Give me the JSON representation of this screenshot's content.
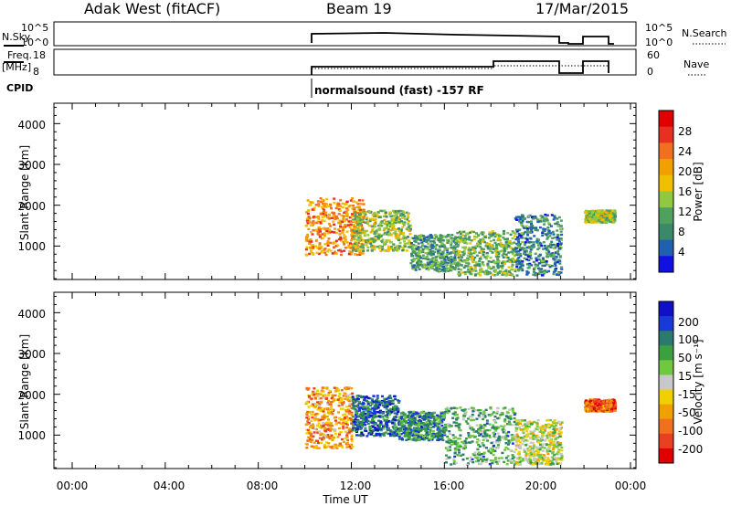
{
  "header": {
    "station": "Adak West (fitACF)",
    "beam": "Beam 19",
    "date": "17/Mar/2015"
  },
  "params": {
    "nsky_label": "N.Sky",
    "nsky_ticks": [
      "10^5",
      "10^0"
    ],
    "nsearch_label": "N.Search",
    "nsearch_ticks": [
      "10^5",
      "10^0"
    ],
    "freq_label_1": "Freq.",
    "freq_label_2": "[MHz]",
    "freq_ticks": [
      "18",
      "8"
    ],
    "nave_label": "Nave",
    "nave_ticks": [
      "60",
      "0"
    ],
    "cpid_label": "CPID",
    "cpid_text": "normalsound (fast) -157 RF"
  },
  "axes": {
    "x_ticks": [
      "00:00",
      "04:00",
      "08:00",
      "12:00",
      "16:00",
      "20:00",
      "00:00"
    ],
    "x_label": "Time UT",
    "y_ticks": [
      "4000",
      "3000",
      "2000",
      "1000"
    ],
    "y_label": "Slant Range [km]"
  },
  "colorbars": {
    "power": {
      "label": "Power [dB]",
      "ticks": [
        "28",
        "24",
        "20",
        "16",
        "12",
        "8",
        "4"
      ],
      "colors": [
        "#1010e0",
        "#2060b0",
        "#3a8a6a",
        "#50a060",
        "#90c840",
        "#f0c000",
        "#f0a000",
        "#f07020",
        "#e83020",
        "#e00000"
      ]
    },
    "velocity": {
      "label": "Velocity [m s⁻¹]",
      "ticks": [
        "200",
        "100",
        "50",
        "15",
        "-15",
        "-50",
        "-100",
        "-200"
      ],
      "colors": [
        "#1010c8",
        "#1a3ad8",
        "#2a7a70",
        "#3aa040",
        "#70c840",
        "#c8c8c8",
        "#f0d000",
        "#f0a000",
        "#f07020",
        "#e84020",
        "#e00000"
      ]
    }
  },
  "chart_data": [
    {
      "type": "heatmap",
      "title": "Power [dB]",
      "xlabel": "Time UT",
      "ylabel": "Slant Range [km]",
      "xlim": [
        0,
        24
      ],
      "ylim": [
        180,
        4500
      ],
      "zlim": [
        0,
        32
      ],
      "regions": [
        {
          "t": [
            10.0,
            12.5
          ],
          "r": [
            800,
            2200
          ],
          "z": 22
        },
        {
          "t": [
            12.0,
            14.5
          ],
          "r": [
            900,
            1900
          ],
          "z": 14
        },
        {
          "t": [
            14.5,
            16.5
          ],
          "r": [
            400,
            1300
          ],
          "z": 10
        },
        {
          "t": [
            16.5,
            19.0
          ],
          "r": [
            300,
            1400
          ],
          "z": 12
        },
        {
          "t": [
            19.0,
            21.0
          ],
          "r": [
            300,
            1800
          ],
          "z": 8
        },
        {
          "t": [
            22.0,
            23.3
          ],
          "r": [
            1600,
            1900
          ],
          "z": 14
        }
      ]
    },
    {
      "type": "heatmap",
      "title": "Velocity [m s⁻¹]",
      "xlabel": "Time UT",
      "ylabel": "Slant Range [km]",
      "xlim": [
        0,
        24
      ],
      "ylim": [
        180,
        4500
      ],
      "zlim": [
        -250,
        250
      ],
      "regions": [
        {
          "t": [
            10.0,
            12.0
          ],
          "r": [
            700,
            2200
          ],
          "z": -100
        },
        {
          "t": [
            12.0,
            14.0
          ],
          "r": [
            1000,
            2000
          ],
          "z": 150
        },
        {
          "t": [
            14.0,
            16.0
          ],
          "r": [
            900,
            1600
          ],
          "z": 120
        },
        {
          "t": [
            16.0,
            19.0
          ],
          "r": [
            300,
            1700
          ],
          "z": 80
        },
        {
          "t": [
            19.0,
            21.0
          ],
          "r": [
            300,
            1400
          ],
          "z": 0
        },
        {
          "t": [
            22.0,
            23.3
          ],
          "r": [
            1600,
            1900
          ],
          "z": -150
        }
      ]
    }
  ]
}
